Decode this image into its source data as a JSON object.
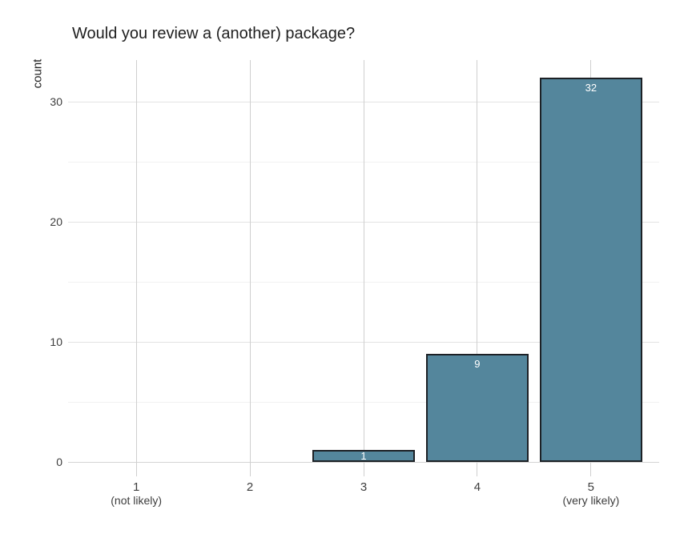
{
  "chart_data": {
    "type": "bar",
    "title": "Would you review a (another) package?",
    "xlabel": "",
    "ylabel": "count",
    "categories": [
      "1",
      "2",
      "3",
      "4",
      "5"
    ],
    "category_sublabels": [
      "(not likely)",
      "",
      "",
      "",
      "(very likely)"
    ],
    "values": [
      0,
      0,
      1,
      9,
      32
    ],
    "bar_value_labels": [
      "",
      "",
      "1",
      "9",
      "32"
    ],
    "ylim": [
      0,
      33.5
    ],
    "yticks_major": [
      0,
      10,
      20,
      30
    ],
    "yticks_minor": [
      5,
      15,
      25
    ],
    "grid": true,
    "legend": "none",
    "colors": {
      "bar_fill": "#54869c",
      "bar_border": "#1d2126",
      "bar_label_text": "#ffffff",
      "grid_major": "#e3e3e3",
      "grid_minor": "#f1f1f1",
      "grid_vertical": "#cfcfcf",
      "zero_line": "#d4d4d4",
      "tick_text": "#3d3d3d",
      "title_text": "#1f1f1f",
      "background": "#ffffff"
    }
  }
}
